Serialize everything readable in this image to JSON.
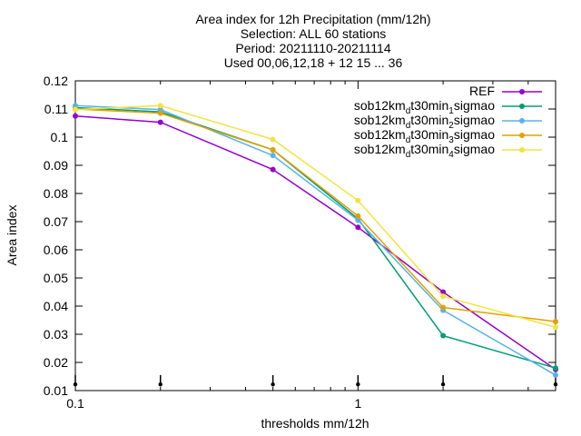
{
  "title_lines": [
    "Area index  for 12h Precipitation (mm/12h)",
    "Selection: ALL     60 stations",
    "Period: 20211110-20211114",
    "Used 00,06,12,18 + 12 15 ... 36"
  ],
  "chart_data": {
    "type": "line",
    "title": "Area index  for 12h Precipitation (mm/12h)",
    "xlabel": "thresholds mm/12h",
    "ylabel": "Area index",
    "xscale": "log",
    "xlim": [
      0.1,
      5
    ],
    "ylim": [
      0.01,
      0.12
    ],
    "yticks": [
      0.01,
      0.02,
      0.03,
      0.04,
      0.05,
      0.06,
      0.07,
      0.08,
      0.09,
      0.1,
      0.11,
      0.12
    ],
    "ytick_labels": [
      "0.01",
      "0.02",
      "0.03",
      "0.04",
      "0.05",
      "0.06",
      "0.07",
      "0.08",
      "0.09",
      "0.1",
      "0.11",
      "0.12"
    ],
    "xticks": [
      0.1,
      1
    ],
    "xtick_labels": [
      "0.1",
      "1"
    ],
    "threshold_marks": [
      0.1,
      0.2,
      0.5,
      1,
      2,
      5
    ],
    "x": [
      0.1,
      0.2,
      0.5,
      1,
      2,
      5
    ],
    "grid": false,
    "legend_position": "top-right",
    "series": [
      {
        "name": "REF",
        "legend": {
          "base": "REF",
          "sub": "",
          "tail": ""
        },
        "color": "#9400d3",
        "values": [
          0.1075,
          0.1053,
          0.0885,
          0.068,
          0.045,
          0.0175
        ]
      },
      {
        "name": "sob12km_dt30min_1sigmao",
        "legend": {
          "base": "sob12km",
          "sub": "d",
          "mid": "t30min",
          "sub2": "1",
          "tail": "sigmao"
        },
        "color": "#009e73",
        "values": [
          0.1105,
          0.109,
          0.0955,
          0.071,
          0.0295,
          0.018
        ]
      },
      {
        "name": "sob12km_dt30min_2sigmao",
        "legend": {
          "base": "sob12km",
          "sub": "d",
          "mid": "t30min",
          "sub2": "2",
          "tail": "sigmao"
        },
        "color": "#56b4e9",
        "values": [
          0.1112,
          0.1098,
          0.0935,
          0.0705,
          0.0385,
          0.0155
        ]
      },
      {
        "name": "sob12km_dt30min_3sigmao",
        "legend": {
          "base": "sob12km",
          "sub": "d",
          "mid": "t30min",
          "sub2": "3",
          "tail": "sigmao"
        },
        "color": "#e69f00",
        "values": [
          0.11,
          0.1085,
          0.0955,
          0.072,
          0.0395,
          0.0345
        ]
      },
      {
        "name": "sob12km_dt30min_4sigmao",
        "legend": {
          "base": "sob12km",
          "sub": "d",
          "mid": "t30min",
          "sub2": "4",
          "tail": "sigmao"
        },
        "color": "#f0e442",
        "values": [
          0.1098,
          0.1112,
          0.0992,
          0.0775,
          0.0435,
          0.0325
        ]
      }
    ]
  }
}
